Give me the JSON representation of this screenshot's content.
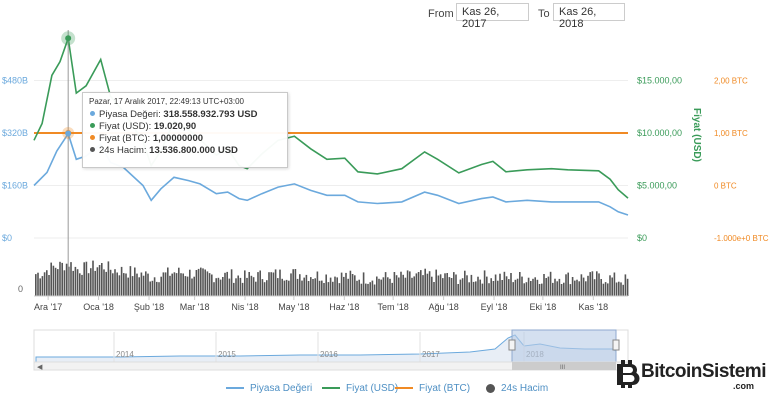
{
  "range": {
    "from_label": "From",
    "from_value": "Kas 26, 2017",
    "to_label": "To",
    "to_value": "Kas 26, 2018"
  },
  "colors": {
    "market_cap": "#6ba9dd",
    "price_usd": "#3a9b59",
    "price_btc": "#f08a24",
    "volume": "#555555",
    "navigator_fill": "#b8cbe6"
  },
  "axes": {
    "left_ticks": [
      "$480B",
      "$320B",
      "$160B",
      "$0"
    ],
    "left_values": [
      480,
      320,
      160,
      0
    ],
    "usd_ticks": [
      "$15.000,00",
      "$10.000,00",
      "$5.000,00",
      "$0"
    ],
    "usd_values": [
      15000,
      10000,
      5000,
      0
    ],
    "usd_title": "Fiyat (USD)",
    "btc_ticks": [
      "2,00 BTC",
      "1,00 BTC",
      "0 BTC",
      "-1.000e+0 BTC"
    ],
    "btc_values": [
      2,
      1,
      0,
      -1
    ],
    "volume_tick": "0"
  },
  "chart_data": {
    "type": "line",
    "x_labels": [
      "Ara '17",
      "Oca '18",
      "Şub '18",
      "Mar '18",
      "Nis '18",
      "May '18",
      "Haz '18",
      "Tem '18",
      "Ağu '18",
      "Eyl '18",
      "Eki '18",
      "Kas '18"
    ],
    "x_range": [
      "2017-11-26",
      "2018-11-26"
    ],
    "series": [
      {
        "name": "Piyasa Değeri",
        "axis": "left",
        "unit": "billion USD",
        "points": [
          [
            "2017-11-26",
            160
          ],
          [
            "2017-12-04",
            200
          ],
          [
            "2017-12-10",
            265
          ],
          [
            "2017-12-17",
            318
          ],
          [
            "2017-12-22",
            240
          ],
          [
            "2017-12-28",
            250
          ],
          [
            "2018-01-06",
            285
          ],
          [
            "2018-01-12",
            230
          ],
          [
            "2018-01-20",
            215
          ],
          [
            "2018-02-01",
            160
          ],
          [
            "2018-02-06",
            115
          ],
          [
            "2018-02-12",
            150
          ],
          [
            "2018-02-20",
            185
          ],
          [
            "2018-03-01",
            175
          ],
          [
            "2018-03-08",
            165
          ],
          [
            "2018-03-18",
            135
          ],
          [
            "2018-03-25",
            140
          ],
          [
            "2018-04-01",
            120
          ],
          [
            "2018-04-06",
            115
          ],
          [
            "2018-04-15",
            135
          ],
          [
            "2018-04-25",
            155
          ],
          [
            "2018-05-05",
            165
          ],
          [
            "2018-05-15",
            145
          ],
          [
            "2018-05-25",
            130
          ],
          [
            "2018-06-05",
            130
          ],
          [
            "2018-06-13",
            110
          ],
          [
            "2018-06-25",
            105
          ],
          [
            "2018-07-10",
            110
          ],
          [
            "2018-07-24",
            140
          ],
          [
            "2018-08-01",
            130
          ],
          [
            "2018-08-14",
            105
          ],
          [
            "2018-08-28",
            120
          ],
          [
            "2018-09-04",
            125
          ],
          [
            "2018-09-12",
            110
          ],
          [
            "2018-09-25",
            115
          ],
          [
            "2018-10-10",
            110
          ],
          [
            "2018-10-20",
            110
          ],
          [
            "2018-11-08",
            110
          ],
          [
            "2018-11-15",
            95
          ],
          [
            "2018-11-20",
            80
          ],
          [
            "2018-11-26",
            70
          ]
        ]
      },
      {
        "name": "Fiyat (USD)",
        "axis": "usd",
        "unit": "USD",
        "points": [
          [
            "2017-11-26",
            9300
          ],
          [
            "2017-12-01",
            10900
          ],
          [
            "2017-12-07",
            15500
          ],
          [
            "2017-12-12",
            16800
          ],
          [
            "2017-12-17",
            19020.9
          ],
          [
            "2017-12-22",
            13800
          ],
          [
            "2017-12-28",
            14500
          ],
          [
            "2018-01-06",
            17000
          ],
          [
            "2018-01-12",
            13500
          ],
          [
            "2018-01-20",
            12000
          ],
          [
            "2018-02-01",
            9200
          ],
          [
            "2018-02-06",
            6900
          ],
          [
            "2018-02-12",
            8300
          ],
          [
            "2018-02-20",
            11100
          ],
          [
            "2018-03-01",
            10300
          ],
          [
            "2018-03-08",
            9400
          ],
          [
            "2018-03-18",
            7900
          ],
          [
            "2018-03-25",
            8500
          ],
          [
            "2018-04-01",
            6900
          ],
          [
            "2018-04-06",
            6600
          ],
          [
            "2018-04-15",
            8000
          ],
          [
            "2018-04-25",
            9300
          ],
          [
            "2018-05-05",
            9700
          ],
          [
            "2018-05-15",
            8500
          ],
          [
            "2018-05-25",
            7500
          ],
          [
            "2018-06-05",
            7600
          ],
          [
            "2018-06-13",
            6300
          ],
          [
            "2018-06-25",
            6100
          ],
          [
            "2018-07-10",
            6600
          ],
          [
            "2018-07-24",
            8200
          ],
          [
            "2018-08-01",
            7500
          ],
          [
            "2018-08-14",
            6200
          ],
          [
            "2018-08-28",
            7000
          ],
          [
            "2018-09-04",
            7300
          ],
          [
            "2018-09-12",
            6300
          ],
          [
            "2018-09-25",
            6500
          ],
          [
            "2018-10-10",
            6600
          ],
          [
            "2018-10-20",
            6500
          ],
          [
            "2018-11-08",
            6400
          ],
          [
            "2018-11-15",
            5600
          ],
          [
            "2018-11-20",
            4600
          ],
          [
            "2018-11-26",
            3800
          ]
        ]
      },
      {
        "name": "Fiyat (BTC)",
        "axis": "btc",
        "unit": "BTC",
        "points": [
          [
            "2017-11-26",
            1
          ],
          [
            "2018-11-26",
            1
          ]
        ]
      }
    ],
    "volume": {
      "name": "24s Hacim",
      "note": "bars on lower panel"
    },
    "legend": [
      "Piyasa Değeri",
      "Fiyat (USD)",
      "Fiyat (BTC)",
      "24s Hacim"
    ],
    "legend_position": "bottom"
  },
  "tooltip": {
    "date": "Pazar, 17 Aralık 2017, 22:49:13 UTC+03:00",
    "rows": [
      {
        "label": "Piyasa Değeri:",
        "value": "318.558.932.793 USD",
        "color": "#6ba9dd"
      },
      {
        "label": "Fiyat (USD):",
        "value": "19.020,90",
        "color": "#3a9b59"
      },
      {
        "label": "Fiyat (BTC):",
        "value": "1,00000000",
        "color": "#f08a24"
      },
      {
        "label": "24s Hacim:",
        "value": "13.536.800.000 USD",
        "color": "#555555"
      }
    ]
  },
  "navigator": {
    "years": [
      "2014",
      "2015",
      "2016",
      "2017",
      "2018"
    ]
  },
  "logo": {
    "name": "BitcoinSistemi",
    "tld": ".com"
  }
}
